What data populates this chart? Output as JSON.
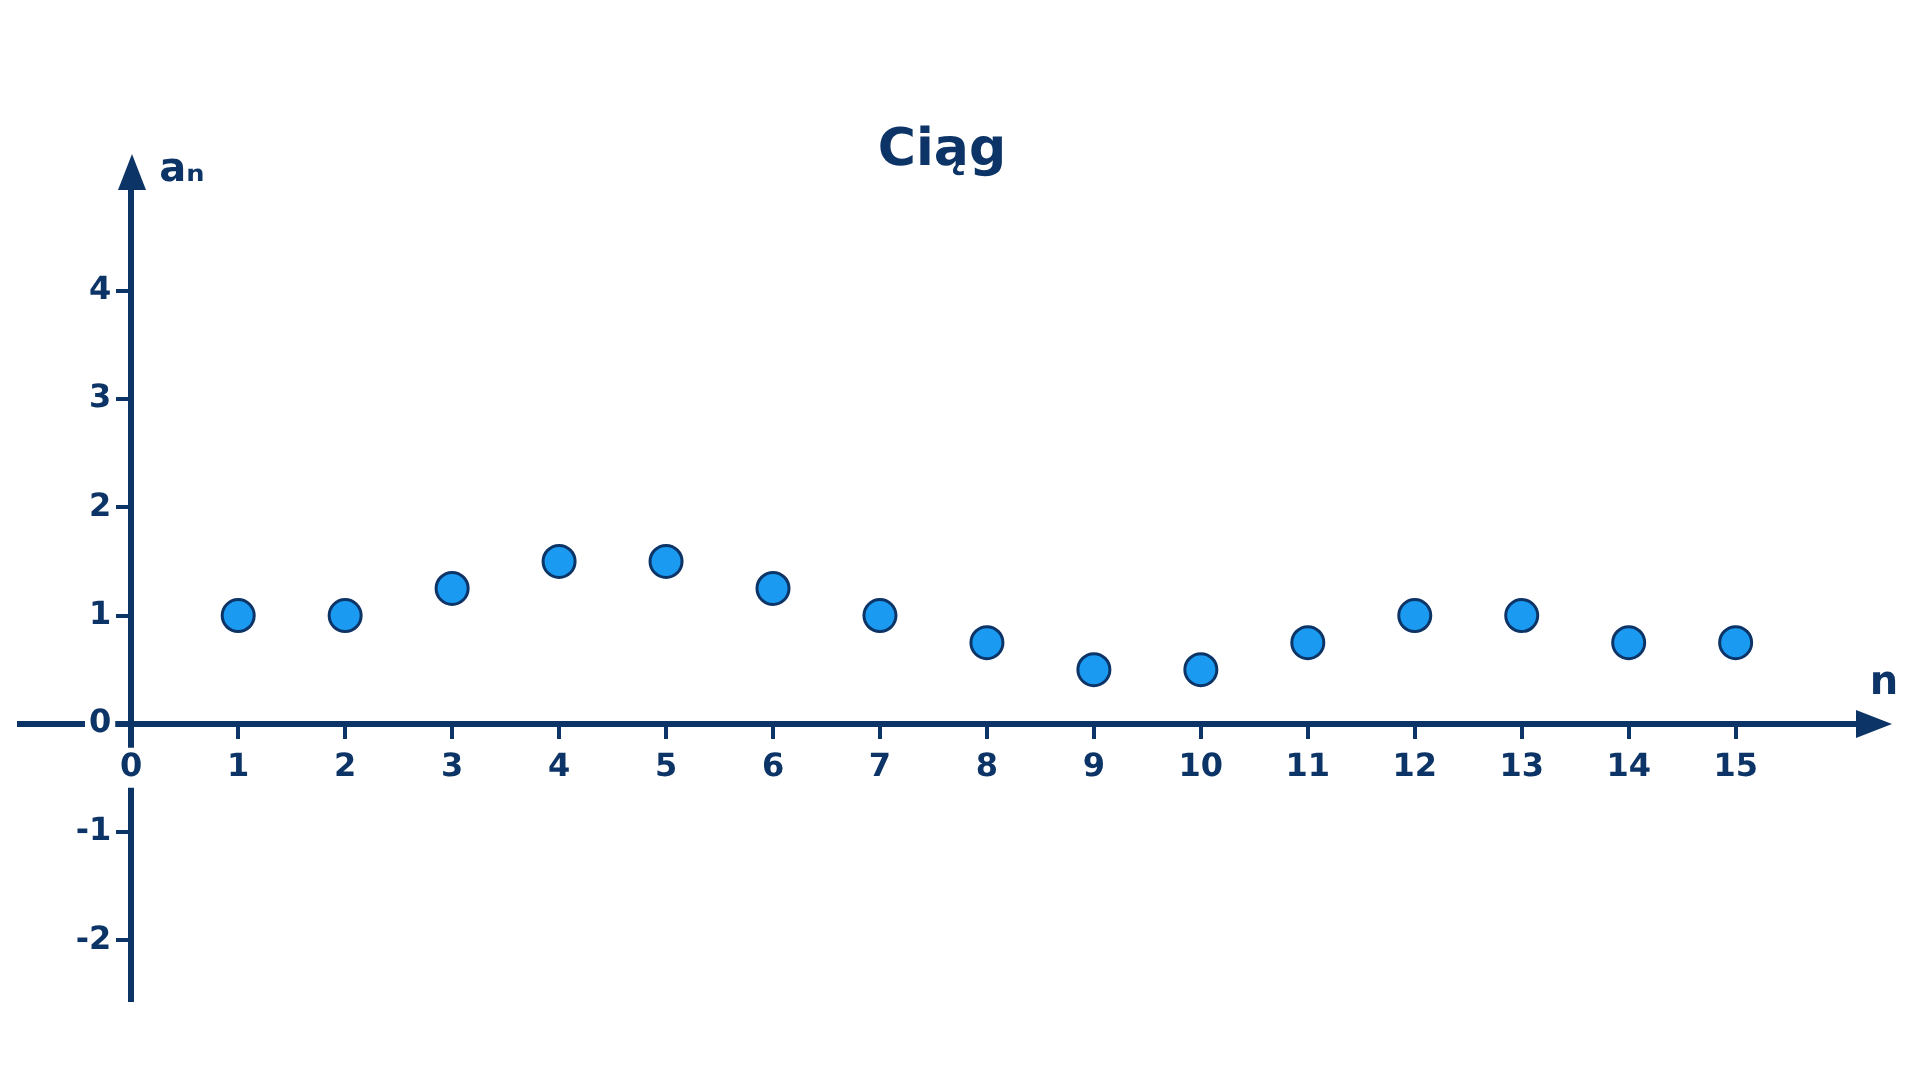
{
  "chart_data": {
    "type": "scatter",
    "title": "Ciąg",
    "xlabel": "n",
    "ylabel": "aₙ",
    "x": [
      1,
      2,
      3,
      4,
      5,
      6,
      7,
      8,
      9,
      10,
      11,
      12,
      13,
      14,
      15
    ],
    "series": [
      {
        "color": "#1a9af0",
        "values": [
          1,
          1,
          1.25,
          1.5,
          1.5,
          1.25,
          1,
          0.75,
          0.5,
          0.5,
          0.75,
          1,
          1,
          0.75,
          0.75
        ]
      }
    ],
    "xlim": [
      -1.04,
      16.2
    ],
    "ylim": [
      -2.55,
      5
    ],
    "xticks": [
      0,
      1,
      2,
      3,
      4,
      5,
      6,
      7,
      8,
      9,
      10,
      11,
      12,
      13,
      14,
      15
    ],
    "yticks": [
      -2,
      -1,
      0,
      1,
      2,
      3,
      4
    ],
    "grid": false,
    "legend": false,
    "marker": "circle"
  }
}
